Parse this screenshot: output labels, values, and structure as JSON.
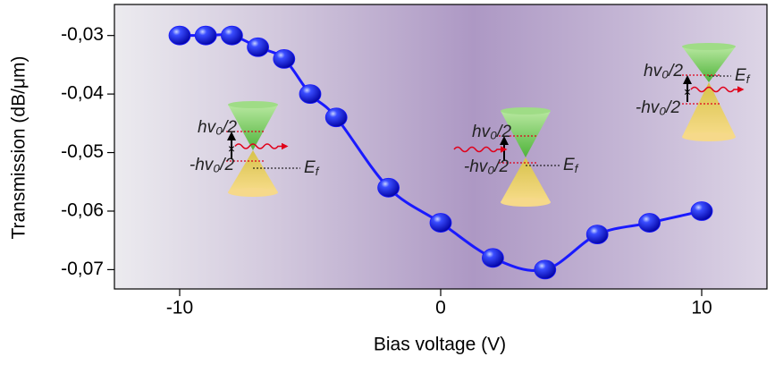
{
  "chart_data": {
    "type": "scatter",
    "xlabel": "Bias voltage (V)",
    "ylabel": "Transmission (dB/μm)",
    "xlim": [
      -12.5,
      12.5
    ],
    "ylim": [
      -0.0733,
      -0.0247
    ],
    "xticks": [
      -10,
      0,
      10
    ],
    "yticks": [
      {
        "value": -0.03,
        "label": "-0,03"
      },
      {
        "value": -0.04,
        "label": "-0,04"
      },
      {
        "value": -0.05,
        "label": "-0,05"
      },
      {
        "value": -0.06,
        "label": "-0,06"
      },
      {
        "value": -0.07,
        "label": "-0,07"
      }
    ],
    "series": [
      {
        "color": "#1a1aff",
        "line": true,
        "x": [
          -10,
          -9,
          -8,
          -7,
          -6,
          -5,
          -4,
          -2,
          0,
          2,
          4,
          6,
          8,
          10
        ],
        "values": [
          -0.03,
          -0.03,
          -0.03,
          -0.032,
          -0.034,
          -0.04,
          -0.044,
          -0.056,
          -0.062,
          -0.068,
          -0.07,
          -0.064,
          -0.062,
          -0.06
        ]
      }
    ],
    "insets": [
      {
        "upper": "hv₀/2",
        "lower": "-hv₀/2",
        "fermi": "E",
        "fermi_sub": "f"
      },
      {
        "upper": "hv₀/2",
        "lower": "-hv₀/2",
        "fermi": "E",
        "fermi_sub": "f"
      },
      {
        "upper": "hv₀/2",
        "lower": "-hv₀/2",
        "fermi": "E",
        "fermi_sub": "f"
      }
    ]
  }
}
